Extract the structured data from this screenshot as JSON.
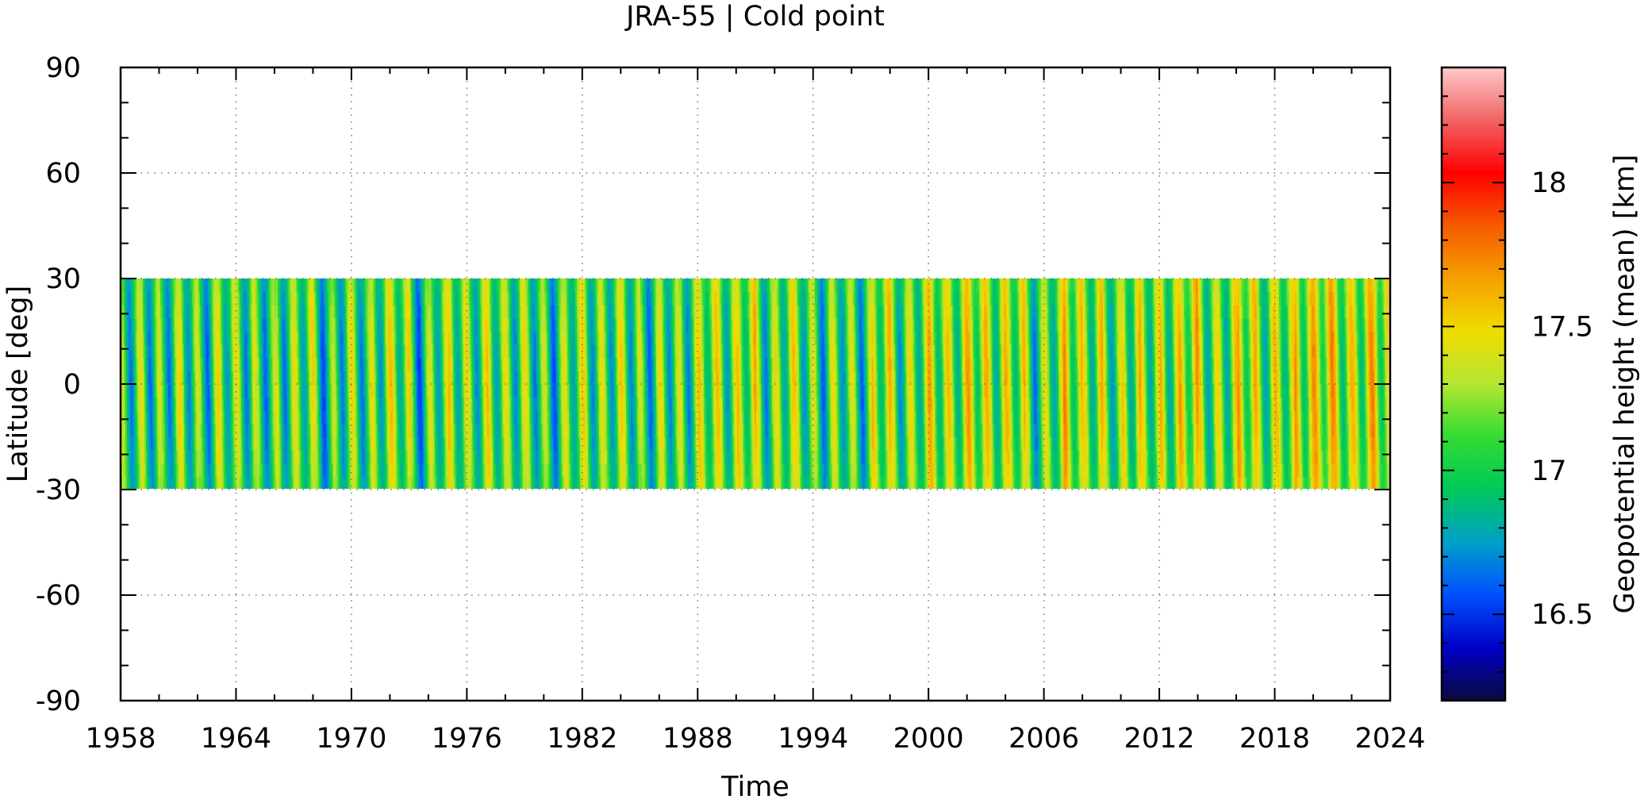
{
  "chart_data": {
    "type": "heatmap",
    "title": "JRA-55 | Cold point",
    "xlabel": "Time",
    "ylabel": "Latitude [deg]",
    "colorbar_label": "Geopotential height (mean) [km]",
    "xlim": [
      1958,
      2024
    ],
    "ylim": [
      -90,
      90
    ],
    "x_ticks": [
      1958,
      1964,
      1970,
      1976,
      1982,
      1988,
      1994,
      2000,
      2006,
      2012,
      2018,
      2024
    ],
    "y_ticks": [
      90,
      60,
      30,
      0,
      -30,
      -60,
      -90
    ],
    "data_lat_range": [
      -30,
      30
    ],
    "data_time_range": [
      1958,
      2023.9
    ],
    "colorbar_range": [
      16.2,
      18.4
    ],
    "colorbar_ticks": [
      16.5,
      17,
      17.5,
      18
    ],
    "colormap": [
      "#0a0a3c",
      "#0000c8",
      "#0050ff",
      "#00a0c8",
      "#00c85a",
      "#32dc32",
      "#b4e632",
      "#f0dc00",
      "#f5a000",
      "#f55a00",
      "#ff0000",
      "#f06464",
      "#ffc8c8"
    ],
    "grid": true,
    "typical_value": 17.0,
    "annual_cycle_amplitude": 0.4,
    "trend_km_per_decade": 0.04
  }
}
